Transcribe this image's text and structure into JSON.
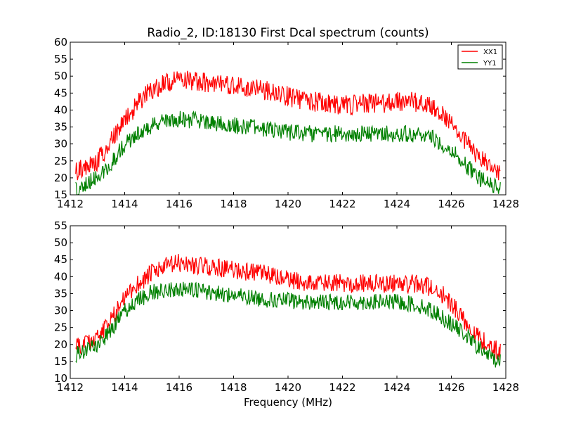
{
  "figure": {
    "title": "Radio_2, ID:18130 First Dcal spectrum (counts)"
  },
  "chart_data": [
    {
      "type": "line",
      "title": "Radio_2, ID:18130 First Dcal spectrum (counts)",
      "xlabel": "",
      "ylabel": "",
      "xlim": [
        1412,
        1428
      ],
      "ylim": [
        15,
        60
      ],
      "xticks": [
        1412,
        1414,
        1416,
        1418,
        1420,
        1422,
        1424,
        1426,
        1428
      ],
      "yticks": [
        15,
        20,
        25,
        30,
        35,
        40,
        45,
        50,
        55,
        60
      ],
      "grid": false,
      "legend": {
        "placement": "top-right",
        "entries": [
          "XX1",
          "YY1"
        ]
      },
      "series": [
        {
          "name": "XX1",
          "color": "#ff0000",
          "x": [
            1412.2,
            1413.0,
            1413.5,
            1414.0,
            1414.5,
            1415.0,
            1415.5,
            1416.0,
            1416.5,
            1417.0,
            1417.5,
            1418.0,
            1418.5,
            1419.0,
            1419.5,
            1420.0,
            1420.5,
            1421.0,
            1421.5,
            1422.0,
            1422.5,
            1423.0,
            1423.5,
            1424.0,
            1424.5,
            1425.0,
            1425.5,
            1426.0,
            1426.5,
            1427.0,
            1427.5,
            1427.8
          ],
          "values": [
            22,
            25,
            31,
            37,
            42,
            46,
            48,
            49,
            48.5,
            48,
            47.5,
            47,
            46.5,
            46,
            45,
            44,
            43,
            42.5,
            42,
            41.5,
            41.5,
            42,
            42,
            42.5,
            42.5,
            42,
            40,
            36,
            31,
            26,
            23,
            22
          ],
          "noise": 3.0
        },
        {
          "name": "YY1",
          "color": "#008000",
          "x": [
            1412.2,
            1413.0,
            1413.5,
            1414.0,
            1414.5,
            1415.0,
            1415.5,
            1416.0,
            1416.5,
            1417.0,
            1417.5,
            1418.0,
            1418.5,
            1419.0,
            1419.5,
            1420.0,
            1420.5,
            1421.0,
            1421.5,
            1422.0,
            1422.5,
            1423.0,
            1423.5,
            1424.0,
            1424.5,
            1425.0,
            1425.5,
            1426.0,
            1426.5,
            1427.0,
            1427.5,
            1427.8
          ],
          "values": [
            17,
            20,
            24,
            30,
            33,
            35.5,
            37,
            37.5,
            37,
            36.5,
            36,
            35.5,
            35,
            34.5,
            34,
            33.5,
            33,
            33,
            33,
            33,
            33,
            33,
            33,
            33,
            33,
            32.5,
            31,
            28,
            24,
            20,
            18,
            17
          ],
          "noise": 2.5
        }
      ]
    },
    {
      "type": "line",
      "title": "",
      "xlabel": "Frequency (MHz)",
      "ylabel": "",
      "xlim": [
        1412,
        1428
      ],
      "ylim": [
        10,
        55
      ],
      "xticks": [
        1412,
        1414,
        1416,
        1418,
        1420,
        1422,
        1424,
        1426,
        1428
      ],
      "yticks": [
        10,
        15,
        20,
        25,
        30,
        35,
        40,
        45,
        50,
        55
      ],
      "grid": false,
      "series": [
        {
          "color": "#ff0000",
          "x": [
            1412.2,
            1413.0,
            1413.5,
            1414.0,
            1414.5,
            1415.0,
            1415.5,
            1416.0,
            1416.5,
            1417.0,
            1417.5,
            1418.0,
            1418.5,
            1419.0,
            1419.5,
            1420.0,
            1420.5,
            1421.0,
            1421.5,
            1422.0,
            1422.5,
            1423.0,
            1423.5,
            1424.0,
            1424.5,
            1425.0,
            1425.5,
            1426.0,
            1426.5,
            1427.0,
            1427.5,
            1427.8
          ],
          "values": [
            19,
            22,
            27,
            34,
            38,
            41,
            43,
            44,
            43.5,
            43,
            42.5,
            42,
            41.5,
            41,
            40,
            39,
            38.5,
            38,
            38,
            38,
            38,
            38,
            38,
            38,
            38,
            37.5,
            36,
            32,
            27,
            22,
            19,
            18
          ],
          "noise": 2.8
        },
        {
          "color": "#008000",
          "x": [
            1412.2,
            1413.0,
            1413.5,
            1414.0,
            1414.5,
            1415.0,
            1415.5,
            1416.0,
            1416.5,
            1417.0,
            1417.5,
            1418.0,
            1418.5,
            1419.0,
            1419.5,
            1420.0,
            1420.5,
            1421.0,
            1421.5,
            1422.0,
            1422.5,
            1423.0,
            1423.5,
            1424.0,
            1424.5,
            1425.0,
            1425.5,
            1426.0,
            1426.5,
            1427.0,
            1427.5,
            1427.8
          ],
          "values": [
            17,
            20,
            24,
            30,
            33,
            35.5,
            36,
            36.5,
            36,
            35.5,
            35,
            34.5,
            34,
            33.5,
            33,
            33,
            32.5,
            32.5,
            32.5,
            32.5,
            32.5,
            32.5,
            32.5,
            32.5,
            32,
            31,
            29,
            26,
            23,
            19,
            16,
            15
          ],
          "noise": 2.4
        }
      ]
    }
  ]
}
